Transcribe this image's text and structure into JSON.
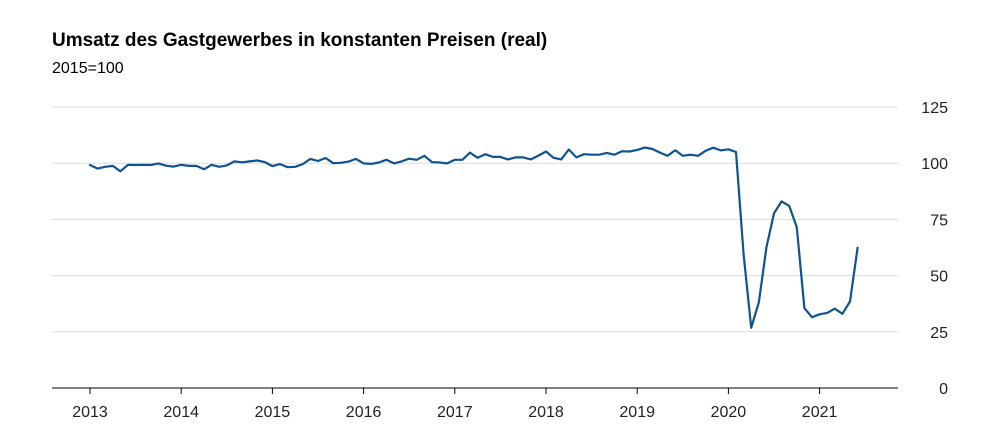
{
  "chart_data": {
    "type": "line",
    "title": "Umsatz des Gastgewerbes in konstanten Preisen (real)",
    "subtitle": "2015=100",
    "xlabel": "",
    "ylabel": "",
    "ylim": [
      0,
      125
    ],
    "xlim": [
      2013,
      2021.85
    ],
    "y_ticks": [
      "0",
      "25",
      "50",
      "75",
      "100",
      "125"
    ],
    "x_ticks": [
      "2013",
      "2014",
      "2015",
      "2016",
      "2017",
      "2018",
      "2019",
      "2020",
      "2021"
    ],
    "grid": "horizontal",
    "y_axis_side": "right",
    "line_color": "#0d5491",
    "series": [
      {
        "start": "2013-01",
        "frequency": "monthly",
        "values": [
          99.2,
          97.6,
          98.4,
          98.8,
          96.4,
          99.3,
          99.2,
          99.3,
          99.2,
          99.9,
          98.9,
          98.5,
          99.3,
          98.8,
          98.8,
          97.3,
          99.3,
          98.4,
          99.0,
          100.8,
          100.4,
          100.8,
          101.2,
          100.5,
          98.7,
          99.6,
          98.2,
          98.4,
          99.6,
          101.9,
          101.0,
          102.3,
          100.0,
          100.2,
          100.7,
          101.9,
          99.9,
          99.7,
          100.3,
          101.5,
          99.9,
          100.8,
          102.0,
          101.5,
          103.3,
          100.5,
          100.3,
          99.9,
          101.5,
          101.5,
          104.7,
          102.4,
          104.0,
          102.8,
          102.8,
          101.7,
          102.6,
          102.6,
          101.7,
          103.4,
          105.2,
          102.4,
          101.7,
          106.1,
          102.6,
          104.0,
          103.8,
          103.8,
          104.6,
          103.8,
          105.3,
          105.2,
          105.9,
          107.0,
          106.3,
          104.7,
          103.3,
          105.8,
          103.3,
          103.8,
          103.3,
          105.5,
          106.9,
          105.7,
          106.2,
          105.0,
          59.5,
          26.8,
          38.0,
          62.5,
          77.7,
          83.0,
          81.0,
          71.5,
          35.5,
          31.5,
          32.8,
          33.4,
          35.3,
          33.0,
          38.5,
          62.4
        ]
      }
    ]
  }
}
